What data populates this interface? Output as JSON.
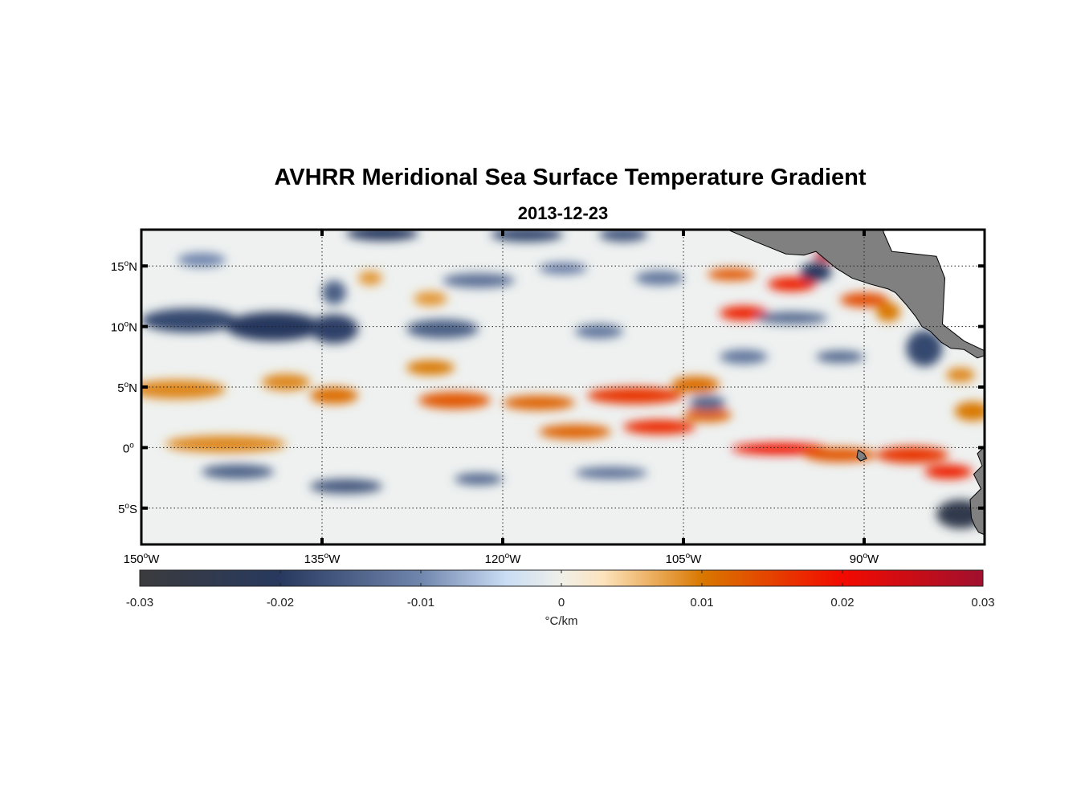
{
  "title": "AVHRR Meridional Sea Surface Temperature Gradient",
  "subtitle": "2013-12-23",
  "chart_data": {
    "type": "heatmap",
    "map_extent": {
      "lon": [
        -150,
        -80
      ],
      "lat": [
        -8,
        18
      ]
    },
    "x_ticks": [
      {
        "value": -150,
        "deg": "150",
        "hem": "W"
      },
      {
        "value": -135,
        "deg": "135",
        "hem": "W"
      },
      {
        "value": -120,
        "deg": "120",
        "hem": "W"
      },
      {
        "value": -105,
        "deg": "105",
        "hem": "W"
      },
      {
        "value": -90,
        "deg": "90",
        "hem": "W"
      }
    ],
    "y_ticks": [
      {
        "value": 15,
        "deg": "15",
        "hem": "N"
      },
      {
        "value": 10,
        "deg": "10",
        "hem": "N"
      },
      {
        "value": 5,
        "deg": "5",
        "hem": "N"
      },
      {
        "value": 0,
        "deg": "0",
        "hem": ""
      },
      {
        "value": -5,
        "deg": "5",
        "hem": "S"
      }
    ],
    "grid": true,
    "colorbar": {
      "range": [
        -0.03,
        0.03
      ],
      "ticks": [
        "-0.03",
        "-0.02",
        "-0.01",
        "0",
        "0.01",
        "0.02",
        "0.03"
      ],
      "tick_values": [
        -0.03,
        -0.02,
        -0.01,
        0,
        0.01,
        0.02,
        0.03
      ],
      "label": "°C/km",
      "placement": "bottom",
      "colors": [
        [
          -0.03,
          "#3b3b3d"
        ],
        [
          -0.02,
          "#27395f"
        ],
        [
          -0.01,
          "#7186ad"
        ],
        [
          -0.004,
          "#c8dcf4"
        ],
        [
          0,
          "#f0f0ea"
        ],
        [
          0.003,
          "#fde3bc"
        ],
        [
          0.01,
          "#d97800"
        ],
        [
          0.02,
          "#f20a00"
        ],
        [
          0.03,
          "#a0102e"
        ]
      ]
    },
    "features": [
      [
        -147,
        4.8,
        0.009,
        4,
        0.8
      ],
      [
        -143,
        0.3,
        0.009,
        5,
        0.7
      ],
      [
        -138,
        5.4,
        0.009,
        2,
        0.7
      ],
      [
        -134,
        4.3,
        0.011,
        2,
        0.7
      ],
      [
        -126,
        6.6,
        0.01,
        2,
        0.6
      ],
      [
        -124,
        3.9,
        0.013,
        3,
        0.7
      ],
      [
        -117,
        3.7,
        0.012,
        3,
        0.6
      ],
      [
        -114,
        1.3,
        0.012,
        3,
        0.6
      ],
      [
        -109,
        4.3,
        0.016,
        4,
        0.7
      ],
      [
        -107,
        1.7,
        0.017,
        3,
        0.6
      ],
      [
        -104,
        5.2,
        0.011,
        2,
        0.7
      ],
      [
        -103,
        2.7,
        0.012,
        2,
        0.6
      ],
      [
        -97,
        -0.1,
        0.019,
        4,
        0.5
      ],
      [
        -92,
        -0.6,
        0.013,
        3,
        0.6
      ],
      [
        -86,
        -0.6,
        0.016,
        3,
        0.7
      ],
      [
        -83,
        -2,
        0.018,
        2,
        0.6
      ],
      [
        -101,
        14.3,
        0.013,
        2,
        0.5
      ],
      [
        -100,
        11.1,
        0.018,
        2,
        0.6
      ],
      [
        -96,
        13.5,
        0.018,
        2,
        0.6
      ],
      [
        -93,
        15.8,
        0.028,
        1.2,
        0.4
      ],
      [
        -90,
        12.2,
        0.014,
        2,
        0.6
      ],
      [
        -88,
        11.2,
        0.01,
        1,
        0.8
      ],
      [
        -81,
        3,
        0.01,
        1.5,
        0.8
      ],
      [
        -82,
        6,
        0.009,
        1.2,
        0.6
      ],
      [
        -131,
        14,
        0.008,
        1,
        0.6
      ],
      [
        -126,
        12.3,
        0.008,
        1.4,
        0.6
      ],
      [
        -146,
        10.5,
        -0.018,
        4,
        1.0
      ],
      [
        -139,
        10,
        -0.02,
        4,
        1.2
      ],
      [
        -134,
        9.8,
        -0.019,
        2,
        1.2
      ],
      [
        -125,
        9.8,
        -0.015,
        3,
        0.8
      ],
      [
        -130,
        17.7,
        -0.02,
        3,
        0.6
      ],
      [
        -118,
        17.6,
        -0.018,
        3,
        0.6
      ],
      [
        -110,
        17.6,
        -0.016,
        2,
        0.6
      ],
      [
        -134,
        12.8,
        -0.015,
        1,
        1
      ],
      [
        -122,
        13.8,
        -0.013,
        3,
        0.6
      ],
      [
        -107,
        14,
        -0.012,
        2,
        0.6
      ],
      [
        -94,
        14.5,
        -0.02,
        1.3,
        0.8
      ],
      [
        -96,
        10.7,
        -0.014,
        3,
        0.5
      ],
      [
        -85,
        8.2,
        -0.018,
        1.5,
        1.5
      ],
      [
        -92,
        7.5,
        -0.014,
        2,
        0.5
      ],
      [
        -142,
        -2,
        -0.015,
        3,
        0.6
      ],
      [
        -133,
        -3.2,
        -0.016,
        3,
        0.6
      ],
      [
        -122,
        -2.6,
        -0.014,
        2,
        0.5
      ],
      [
        -111,
        -2.1,
        -0.013,
        3,
        0.5
      ],
      [
        -100,
        7.5,
        -0.012,
        2,
        0.6
      ],
      [
        -103,
        3.7,
        -0.014,
        1.5,
        0.6
      ],
      [
        -82,
        -5.5,
        -0.025,
        2,
        1.2
      ],
      [
        -145,
        15.5,
        -0.01,
        2,
        0.6
      ],
      [
        -112,
        9.6,
        -0.012,
        2,
        0.6
      ],
      [
        -115,
        14.8,
        -0.011,
        2,
        0.5
      ]
    ],
    "land_color": "#808080"
  }
}
